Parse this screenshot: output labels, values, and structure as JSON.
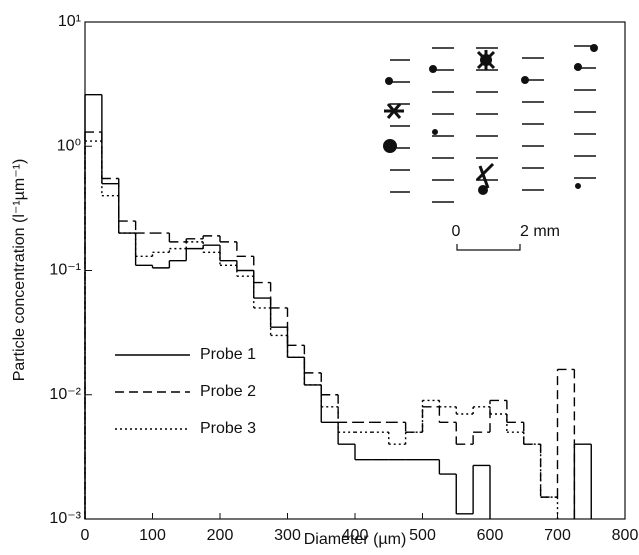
{
  "chart_data": {
    "type": "histogram",
    "xlabel": "Diameter (µm)",
    "ylabel": "Particle concentration (l⁻¹µm⁻¹)",
    "bins": [
      0,
      25,
      50,
      75,
      100,
      125,
      150,
      175,
      200,
      225,
      250,
      275,
      300,
      325,
      350,
      375,
      400,
      425,
      450,
      475,
      500,
      525,
      550,
      575,
      600,
      625,
      650,
      675,
      700,
      725,
      750
    ],
    "series": [
      {
        "name": "Probe 1",
        "color": "#000000",
        "dash": "solid",
        "values": [
          2.6,
          0.5,
          0.2,
          0.11,
          0.105,
          0.12,
          0.15,
          0.16,
          0.12,
          0.1,
          0.06,
          0.035,
          0.02,
          0.012,
          0.006,
          0.004,
          0.003,
          0.003,
          0.003,
          0.003,
          0.003,
          0.0023,
          0.0011,
          0.0027,
          null,
          null,
          null,
          null,
          null,
          0.004
        ]
      },
      {
        "name": "Probe 2",
        "color": "#000000",
        "dash": "dashed",
        "values": [
          1.3,
          0.55,
          0.25,
          0.2,
          0.2,
          0.17,
          0.18,
          0.19,
          0.17,
          0.13,
          0.08,
          0.05,
          0.025,
          0.015,
          0.01,
          0.006,
          0.006,
          0.006,
          0.006,
          0.005,
          0.008,
          0.006,
          0.004,
          0.005,
          0.009,
          0.006,
          0.004,
          0.0015,
          0.016,
          null
        ]
      },
      {
        "name": "Probe 3",
        "color": "#000000",
        "dash": "dotted",
        "values": [
          1.1,
          0.4,
          0.2,
          0.13,
          0.14,
          0.15,
          0.17,
          0.14,
          0.11,
          0.09,
          0.05,
          0.03,
          0.02,
          0.012,
          0.008,
          0.005,
          0.005,
          0.005,
          0.004,
          0.005,
          0.009,
          0.008,
          0.007,
          0.008,
          0.007,
          0.005,
          0.004,
          0.0015,
          null,
          null
        ]
      }
    ],
    "xlim": [
      0,
      800
    ],
    "xticks": [
      0,
      100,
      200,
      300,
      400,
      500,
      600,
      700,
      800
    ],
    "ylim": [
      0.001,
      10
    ],
    "ylog": true,
    "yticks": [
      {
        "value": 10,
        "label": "10¹"
      },
      {
        "value": 1,
        "label": "10⁰"
      },
      {
        "value": 0.1,
        "label": "10⁻¹"
      },
      {
        "value": 0.01,
        "label": "10⁻²"
      },
      {
        "value": 0.001,
        "label": "10⁻³"
      }
    ],
    "legend": "lower-left",
    "annotations": [
      "0",
      "2 mm"
    ]
  }
}
